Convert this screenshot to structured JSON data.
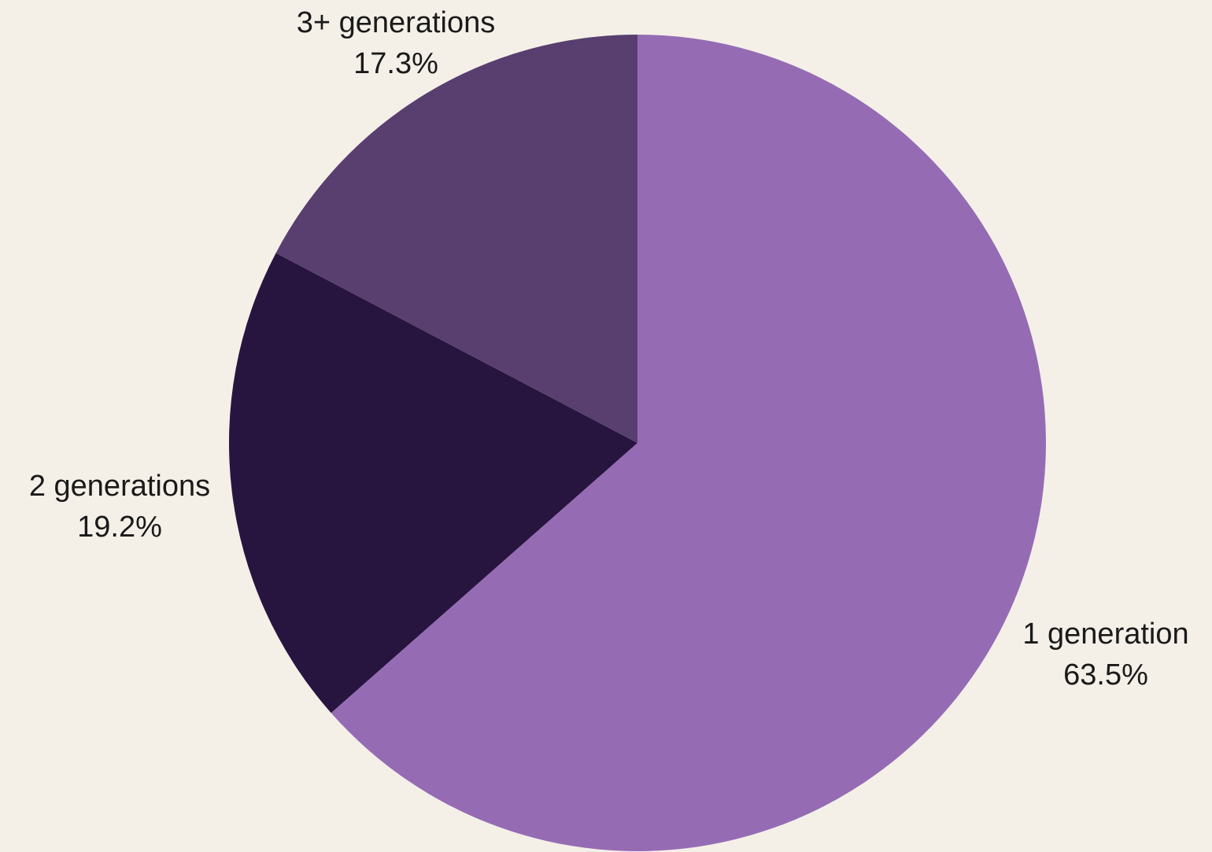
{
  "chart_data": {
    "type": "pie",
    "title": "",
    "slices": [
      {
        "name": "1 generation",
        "value": 63.5,
        "label": "63.5%",
        "color": "#956cb4"
      },
      {
        "name": "2 generations",
        "value": 19.2,
        "label": "19.2%",
        "color": "#28153f"
      },
      {
        "name": "3+ generations",
        "value": 17.3,
        "label": "17.3%",
        "color": "#583f6f"
      }
    ],
    "start_angle": "12 o'clock",
    "direction": "clockwise",
    "legend": "none",
    "background": "#f4f0e8"
  }
}
